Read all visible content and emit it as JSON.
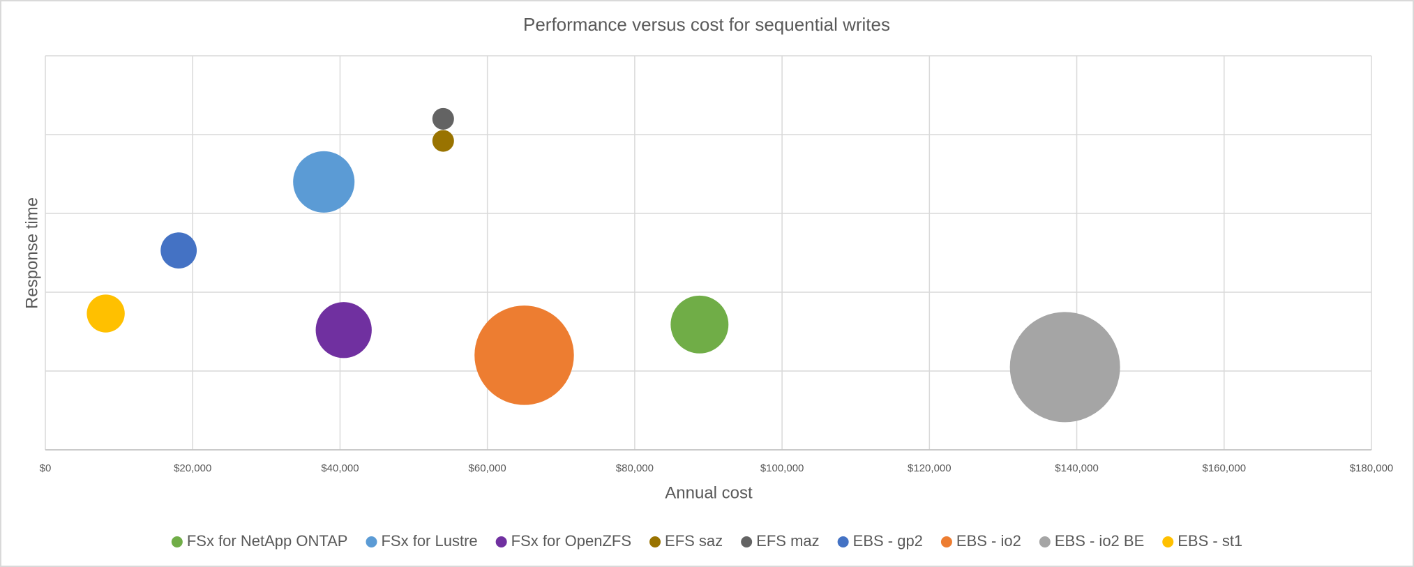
{
  "chart_data": {
    "type": "bubble",
    "title": "Performance versus cost for sequential writes",
    "x_label": "Annual cost",
    "y_label": "Response time",
    "xlim": [
      0,
      180000
    ],
    "xticks": [
      {
        "value": 0,
        "label": "$0"
      },
      {
        "value": 20000,
        "label": "$20,000"
      },
      {
        "value": 40000,
        "label": "$40,000"
      },
      {
        "value": 60000,
        "label": "$60,000"
      },
      {
        "value": 80000,
        "label": "$80,000"
      },
      {
        "value": 100000,
        "label": "$100,000"
      },
      {
        "value": 120000,
        "label": "$120,000"
      },
      {
        "value": 140000,
        "label": "$140,000"
      },
      {
        "value": 160000,
        "label": "$160,000"
      },
      {
        "value": 180000,
        "label": "$180,000"
      }
    ],
    "ylim": [
      0,
      5
    ],
    "ygrid": [
      0,
      1,
      2,
      3,
      4,
      5
    ],
    "grid": true,
    "legend": "bottom",
    "series": [
      {
        "name": "FSx for NetApp ONTAP",
        "color": "#70ad47",
        "x": [
          88800
        ],
        "y": [
          1.59
        ],
        "size": [
          1024
        ]
      },
      {
        "name": "FSx for Lustre",
        "color": "#5b9bd5",
        "x": [
          37800
        ],
        "y": [
          3.4
        ],
        "size": [
          1156
        ]
      },
      {
        "name": "FSx for OpenZFS",
        "color": "#7030a0",
        "x": [
          40500
        ],
        "y": [
          1.52
        ],
        "size": [
          961
        ]
      },
      {
        "name": "EFS saz",
        "color": "#997300",
        "x": [
          54000
        ],
        "y": [
          3.92
        ],
        "size": [
          144
        ]
      },
      {
        "name": "EFS maz",
        "color": "#636363",
        "x": [
          54000
        ],
        "y": [
          4.2
        ],
        "size": [
          144
        ]
      },
      {
        "name": "EBS - gp2",
        "color": "#4472c4",
        "x": [
          18100
        ],
        "y": [
          2.53
        ],
        "size": [
          400
        ]
      },
      {
        "name": "EBS - io2",
        "color": "#ed7d31",
        "x": [
          65000
        ],
        "y": [
          1.2
        ],
        "size": [
          3025
        ]
      },
      {
        "name": "EBS - io2 BE",
        "color": "#a5a5a5",
        "x": [
          138400
        ],
        "y": [
          1.05
        ],
        "size": [
          3721
        ]
      },
      {
        "name": "EBS - st1",
        "color": "#ffc000",
        "x": [
          8200
        ],
        "y": [
          1.73
        ],
        "size": [
          441
        ]
      }
    ]
  }
}
